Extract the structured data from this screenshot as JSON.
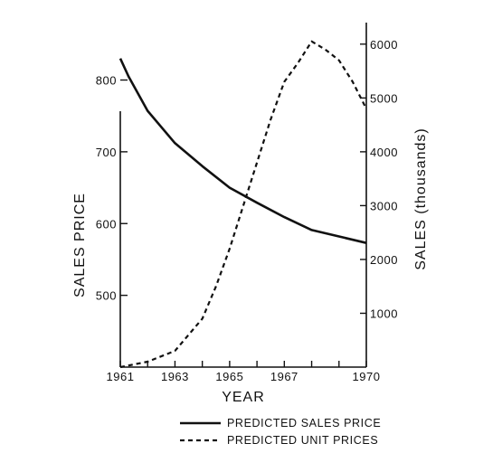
{
  "chart_data": {
    "type": "line",
    "xlabel": "YEAR",
    "ylabel_left": "SALES PRICE",
    "ylabel_right": "SALES (thousands)",
    "x_tick_labels": [
      "1961",
      "1963",
      "1965",
      "1967",
      "1970"
    ],
    "x_minor_ticks": [
      1962,
      1964,
      1966,
      1968,
      1969
    ],
    "xlim": [
      1961,
      1970
    ],
    "ylim_left": [
      400,
      880
    ],
    "yticks_left": [
      500,
      600,
      700,
      800
    ],
    "ylim_right": [
      0,
      6400
    ],
    "yticks_right": [
      1000,
      2000,
      3000,
      4000,
      5000,
      6000
    ],
    "series": [
      {
        "name": "PREDICTED SALES PRICE",
        "axis": "left",
        "style": "solid",
        "x": [
          1961,
          1961.3,
          1962,
          1963,
          1964,
          1965,
          1966,
          1967,
          1968,
          1969,
          1970
        ],
        "y": [
          830,
          805,
          757,
          712,
          680,
          650,
          629,
          609,
          591,
          582,
          573
        ]
      },
      {
        "name": "PREDICTED UNIT PRICES",
        "axis": "right",
        "style": "dashed",
        "x": [
          1961,
          1962,
          1963,
          1964,
          1964.5,
          1965,
          1965.5,
          1966,
          1966.5,
          1967,
          1967.5,
          1968,
          1968.5,
          1969,
          1969.5,
          1970
        ],
        "y": [
          0,
          100,
          300,
          900,
          1500,
          2200,
          3000,
          3800,
          4600,
          5300,
          5650,
          6050,
          5900,
          5700,
          5300,
          4800
        ]
      }
    ],
    "legend": {
      "placement": "bottom",
      "entries": [
        {
          "label": "PREDICTED SALES PRICE",
          "style": "solid"
        },
        {
          "label": "PREDICTED UNIT PRICES",
          "style": "dashed"
        }
      ]
    },
    "grid": false
  }
}
